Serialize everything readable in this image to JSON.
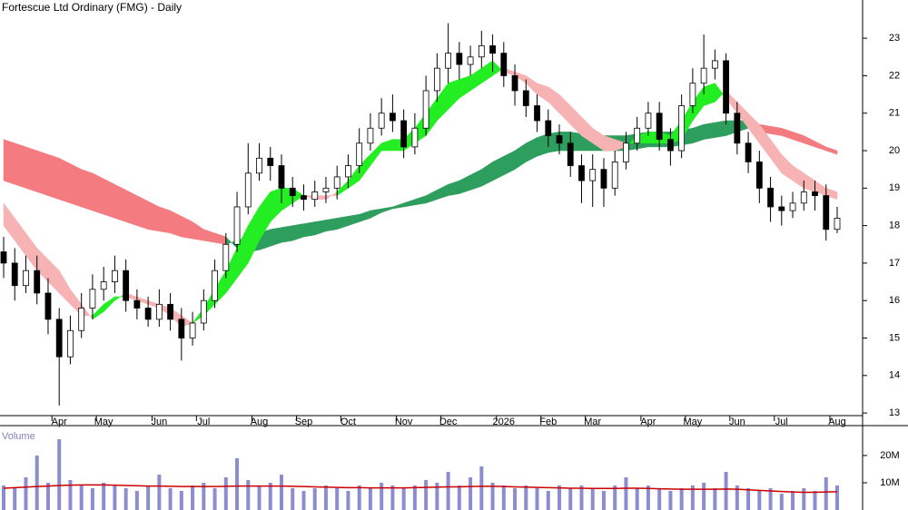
{
  "chart_data": [
    {
      "type": "candlestick",
      "title": "Fortescue Ltd Ordinary (FMG) - Daily",
      "categories": [
        null,
        null,
        null,
        null,
        null,
        "Apr",
        null,
        null,
        null,
        "May",
        null,
        null,
        null,
        null,
        "Jun",
        null,
        null,
        null,
        "Jul",
        null,
        null,
        null,
        null,
        "Aug",
        null,
        null,
        null,
        "Sep",
        null,
        null,
        null,
        "Oct",
        null,
        null,
        null,
        null,
        "Nov",
        null,
        null,
        null,
        "Dec",
        null,
        null,
        null,
        null,
        "2026",
        null,
        null,
        null,
        "Feb",
        null,
        null,
        null,
        "Mar",
        null,
        null,
        null,
        null,
        "Apr",
        null,
        null,
        null,
        "May",
        null,
        null,
        null,
        "Jun",
        null,
        null,
        null,
        "Jul",
        null,
        null,
        null,
        null,
        "Aug"
      ],
      "open": [
        17.3,
        17.0,
        16.4,
        16.8,
        16.2,
        15.5,
        14.5,
        15.2,
        15.8,
        16.3,
        16.5,
        16.8,
        16.0,
        15.8,
        15.5,
        15.9,
        15.5,
        15.0,
        15.4,
        16.0,
        16.8,
        17.5,
        18.5,
        19.4,
        19.8,
        19.6,
        19.0,
        18.8,
        18.7,
        18.9,
        19.0,
        19.3,
        19.6,
        20.2,
        20.6,
        21.0,
        20.8,
        20.1,
        20.6,
        21.6,
        22.2,
        22.6,
        22.3,
        22.5,
        22.8,
        22.6,
        22.0,
        21.6,
        21.2,
        20.8,
        20.4,
        20.2,
        19.6,
        19.2,
        19.5,
        19.0,
        19.7,
        20.2,
        20.6,
        21.0,
        20.3,
        20.0,
        21.2,
        21.8,
        22.2,
        22.4,
        21.0,
        20.2,
        19.7,
        19.0,
        18.5,
        18.4,
        18.6,
        18.9,
        18.8,
        17.9
      ],
      "high": [
        17.7,
        17.4,
        17.2,
        17.2,
        16.6,
        15.8,
        15.6,
        16.2,
        16.7,
        16.9,
        17.2,
        17.1,
        16.3,
        16.1,
        16.3,
        16.2,
        15.8,
        15.7,
        16.3,
        17.1,
        17.8,
        18.9,
        20.2,
        20.2,
        20.1,
        19.9,
        19.3,
        19.1,
        19.2,
        19.3,
        19.6,
        19.9,
        20.6,
        21.0,
        21.4,
        21.5,
        21.1,
        21.0,
        22.0,
        22.6,
        23.4,
        22.9,
        22.8,
        23.2,
        23.1,
        22.9,
        22.3,
        21.9,
        21.5,
        21.1,
        20.7,
        20.5,
        19.9,
        19.9,
        19.8,
        20.0,
        20.5,
        20.9,
        21.3,
        21.3,
        20.6,
        21.5,
        22.2,
        23.1,
        22.7,
        22.6,
        21.3,
        20.5,
        20.0,
        19.3,
        18.8,
        18.9,
        19.2,
        19.2,
        19.1,
        18.5
      ],
      "low": [
        16.6,
        16.0,
        16.2,
        15.9,
        15.1,
        13.2,
        14.3,
        15.0,
        15.5,
        16.0,
        16.2,
        15.7,
        15.5,
        15.3,
        15.3,
        15.2,
        14.4,
        14.8,
        15.2,
        15.8,
        16.6,
        17.3,
        18.3,
        19.2,
        19.2,
        18.6,
        18.5,
        18.4,
        18.5,
        18.6,
        18.7,
        19.0,
        19.4,
        20.0,
        20.4,
        20.5,
        19.8,
        19.9,
        20.4,
        21.3,
        21.8,
        21.9,
        22.0,
        22.2,
        22.1,
        21.7,
        21.2,
        20.9,
        20.5,
        20.1,
        19.9,
        19.3,
        18.6,
        18.5,
        18.5,
        18.8,
        19.5,
        20.0,
        20.4,
        20.0,
        19.6,
        19.8,
        21.0,
        21.5,
        21.9,
        20.7,
        19.9,
        19.4,
        18.6,
        18.1,
        18.0,
        18.2,
        18.4,
        18.4,
        17.6,
        17.8
      ],
      "close": [
        17.0,
        16.4,
        16.8,
        16.2,
        15.5,
        14.5,
        15.2,
        15.8,
        16.3,
        16.5,
        16.8,
        16.0,
        15.8,
        15.5,
        15.9,
        15.5,
        15.0,
        15.4,
        16.0,
        16.8,
        17.5,
        18.5,
        19.4,
        19.8,
        19.6,
        19.0,
        18.8,
        18.7,
        18.9,
        19.0,
        19.3,
        19.6,
        20.2,
        20.6,
        21.0,
        20.8,
        20.1,
        20.6,
        21.6,
        22.2,
        22.6,
        22.3,
        22.5,
        22.8,
        22.6,
        22.0,
        21.6,
        21.2,
        20.8,
        20.4,
        20.2,
        19.6,
        19.2,
        19.5,
        19.0,
        19.7,
        20.2,
        20.6,
        21.0,
        20.3,
        20.0,
        21.2,
        21.8,
        22.2,
        22.4,
        21.0,
        20.2,
        19.7,
        19.0,
        18.5,
        18.4,
        18.6,
        18.9,
        18.8,
        17.9,
        18.2
      ],
      "up_color": "#ffffff",
      "down_color": "#000000",
      "long_ribbon": {
        "up_color": "#2e9e5e",
        "down_color": "#f47c80",
        "fast": [
          19.2,
          19.1,
          19.0,
          18.9,
          18.8,
          18.7,
          18.6,
          18.5,
          18.4,
          18.3,
          18.2,
          18.1,
          18.0,
          17.9,
          17.85,
          17.8,
          17.7,
          17.65,
          17.6,
          17.55,
          17.5,
          17.6,
          17.7,
          17.8,
          17.9,
          17.95,
          18.0,
          18.05,
          18.1,
          18.15,
          18.2,
          18.25,
          18.3,
          18.4,
          18.45,
          18.5,
          18.6,
          18.7,
          18.8,
          18.95,
          19.1,
          19.2,
          19.35,
          19.5,
          19.7,
          19.85,
          20.0,
          20.2,
          20.35,
          20.45,
          20.5,
          20.5,
          20.45,
          20.45,
          20.4,
          20.4,
          20.4,
          20.45,
          20.5,
          20.5,
          20.5,
          20.55,
          20.6,
          20.7,
          20.75,
          20.8,
          20.8,
          20.8,
          20.5,
          20.45,
          20.4,
          20.3,
          20.2,
          20.1,
          20.0,
          19.9
        ],
        "slow": [
          20.3,
          20.2,
          20.1,
          20.0,
          19.9,
          19.8,
          19.65,
          19.5,
          19.4,
          19.25,
          19.1,
          18.95,
          18.8,
          18.65,
          18.5,
          18.4,
          18.25,
          18.1,
          17.9,
          17.8,
          17.7,
          17.4,
          17.3,
          17.35,
          17.45,
          17.55,
          17.6,
          17.7,
          17.75,
          17.85,
          17.9,
          18.0,
          18.1,
          18.2,
          18.35,
          18.45,
          18.5,
          18.55,
          18.6,
          18.7,
          18.8,
          18.85,
          18.95,
          19.05,
          19.2,
          19.35,
          19.5,
          19.7,
          19.85,
          19.95,
          20.0,
          20.0,
          20.0,
          20.0,
          20.0,
          20.0,
          20.0,
          20.05,
          20.1,
          20.1,
          20.1,
          20.15,
          20.2,
          20.3,
          20.35,
          20.4,
          20.5,
          20.6,
          20.7,
          20.65,
          20.6,
          20.5,
          20.4,
          20.25,
          20.1,
          20.0
        ]
      },
      "short_ribbon": {
        "up_color": "#22ee22",
        "down_color": "#f7b3b3",
        "fast": [
          18.0,
          17.6,
          17.2,
          16.8,
          16.5,
          16.2,
          15.9,
          15.6,
          15.6,
          15.9,
          16.1,
          16.1,
          16.0,
          15.9,
          15.8,
          15.6,
          15.3,
          15.4,
          15.8,
          16.3,
          16.8,
          17.4,
          18.0,
          18.5,
          18.9,
          19.0,
          19.0,
          18.8,
          18.7,
          18.7,
          18.9,
          19.2,
          19.6,
          19.9,
          20.2,
          20.3,
          20.3,
          20.6,
          21.0,
          21.4,
          21.8,
          21.9,
          22.0,
          22.2,
          22.4,
          22.1,
          22.0,
          21.8,
          21.5,
          21.3,
          21.0,
          20.7,
          20.4,
          20.2,
          20.0,
          20.0,
          20.1,
          20.4,
          20.5,
          20.5,
          20.4,
          20.8,
          21.3,
          21.7,
          21.8,
          21.4,
          21.0,
          20.6,
          20.2,
          19.8,
          19.4,
          19.2,
          19.0,
          18.9,
          18.8,
          18.7
        ],
        "slow": [
          18.6,
          18.2,
          17.8,
          17.4,
          17.1,
          16.8,
          16.3,
          15.9,
          15.5,
          15.7,
          16.0,
          16.2,
          16.1,
          16.0,
          15.9,
          15.8,
          15.6,
          15.4,
          15.6,
          15.9,
          16.2,
          16.6,
          17.0,
          17.6,
          18.1,
          18.4,
          18.6,
          18.8,
          18.8,
          18.8,
          18.8,
          19.0,
          19.2,
          19.6,
          20.0,
          20.0,
          20.0,
          20.2,
          20.4,
          20.8,
          21.1,
          21.4,
          21.6,
          21.8,
          22.0,
          22.2,
          22.1,
          22.0,
          21.8,
          21.7,
          21.5,
          21.2,
          20.9,
          20.6,
          20.4,
          20.3,
          20.2,
          20.2,
          20.2,
          20.2,
          20.2,
          20.3,
          20.8,
          21.2,
          21.3,
          21.6,
          21.3,
          21.0,
          20.7,
          20.3,
          19.9,
          19.6,
          19.4,
          19.2,
          19.0,
          18.9
        ]
      },
      "ylim": [
        12.93,
        24.02
      ],
      "yticks": [
        13,
        14,
        15,
        16,
        17,
        18,
        19,
        20,
        21,
        22,
        23
      ]
    },
    {
      "type": "bar",
      "title": "Volume",
      "color": "#8c8cd0",
      "values": [
        9,
        8,
        12,
        20,
        10,
        26,
        11,
        9,
        8,
        10,
        9,
        8,
        7,
        9,
        13,
        8,
        7,
        9,
        10,
        8,
        12,
        19,
        11,
        9,
        10,
        13,
        8,
        7,
        8,
        9,
        8,
        7,
        9,
        8,
        10,
        9,
        8,
        9,
        11,
        10,
        14,
        9,
        12,
        16,
        10,
        9,
        8,
        9,
        8,
        7,
        9,
        8,
        9,
        8,
        7,
        9,
        12,
        8,
        9,
        8,
        7,
        8,
        9,
        10,
        8,
        14,
        9,
        8,
        7,
        8,
        6,
        7,
        8,
        7,
        12,
        9
      ],
      "average": {
        "color": "#cc0000",
        "values": [
          8.0,
          8.2,
          8.4,
          8.6,
          8.8,
          9.0,
          9.1,
          9.2,
          9.2,
          9.2,
          9.1,
          9.0,
          8.9,
          8.8,
          8.8,
          8.7,
          8.6,
          8.6,
          8.6,
          8.6,
          8.7,
          8.8,
          8.8,
          8.8,
          8.8,
          8.8,
          8.7,
          8.6,
          8.5,
          8.4,
          8.3,
          8.2,
          8.2,
          8.1,
          8.1,
          8.1,
          8.1,
          8.2,
          8.3,
          8.4,
          8.5,
          8.5,
          8.6,
          8.7,
          8.7,
          8.6,
          8.5,
          8.4,
          8.3,
          8.2,
          8.1,
          8.0,
          8.0,
          7.9,
          7.9,
          7.9,
          8.0,
          8.0,
          7.9,
          7.8,
          7.7,
          7.6,
          7.6,
          7.6,
          7.6,
          7.7,
          7.6,
          7.4,
          7.2,
          7.0,
          6.8,
          6.6,
          6.5,
          6.5,
          6.6,
          6.7
        ]
      },
      "ylim": [
        0,
        30.3
      ],
      "yticks": [
        {
          "value": 20,
          "label": "20M"
        },
        {
          "value": 10,
          "label": "10M"
        }
      ]
    }
  ]
}
